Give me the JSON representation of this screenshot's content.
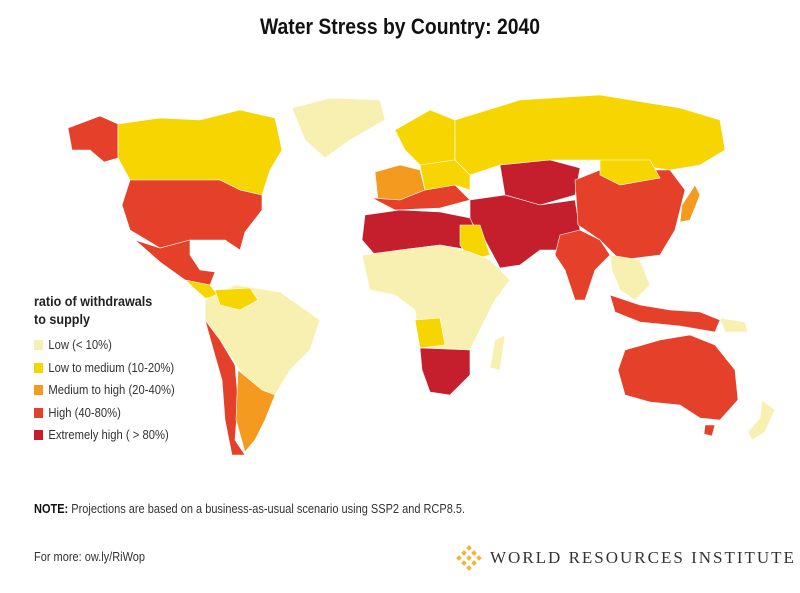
{
  "title": "Water Stress by Country: 2040",
  "legend": {
    "title_line1": "ratio of withdrawals",
    "title_line2": "to supply",
    "items": [
      {
        "label": "Low (< 10%)",
        "color": "#f8f0b0"
      },
      {
        "label": "Low to medium (10-20%)",
        "color": "#f7d500"
      },
      {
        "label": "Medium to high  (20-40%)",
        "color": "#f49b1f"
      },
      {
        "label": "High (40-80%)",
        "color": "#e5402a"
      },
      {
        "label": "Extremely high ( > 80%)",
        "color": "#c51f2e"
      }
    ]
  },
  "note": {
    "label": "NOTE:",
    "text": " Projections are based on a business-as-usual scenario using SSP2 and RCP8.5."
  },
  "more": "For more: ow.ly/RiWop",
  "logo": {
    "text": "WORLD RESOURCES INSTITUTE",
    "color": "#f0b63c"
  }
}
